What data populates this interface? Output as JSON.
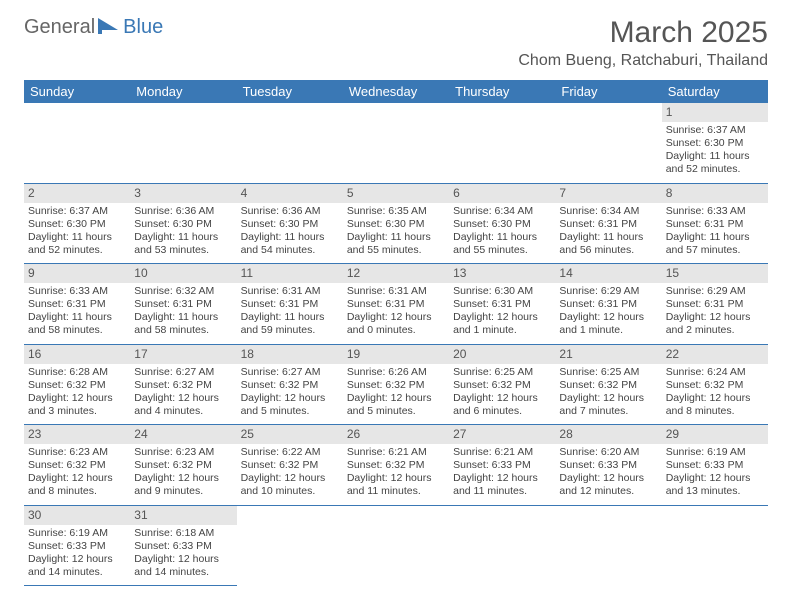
{
  "header": {
    "logo_general": "General",
    "logo_blue": "Blue",
    "month_title": "March 2025",
    "location": "Chom Bueng, Ratchaburi, Thailand"
  },
  "colors": {
    "header_bg": "#3a78b5",
    "header_text": "#ffffff",
    "daynum_bg": "#e6e6e6",
    "rule": "#3a78b5"
  },
  "weekdays": [
    "Sunday",
    "Monday",
    "Tuesday",
    "Wednesday",
    "Thursday",
    "Friday",
    "Saturday"
  ],
  "lead_blanks": 6,
  "days": [
    {
      "n": 1,
      "sunrise": "6:37 AM",
      "sunset": "6:30 PM",
      "daylight": "11 hours and 52 minutes."
    },
    {
      "n": 2,
      "sunrise": "6:37 AM",
      "sunset": "6:30 PM",
      "daylight": "11 hours and 52 minutes."
    },
    {
      "n": 3,
      "sunrise": "6:36 AM",
      "sunset": "6:30 PM",
      "daylight": "11 hours and 53 minutes."
    },
    {
      "n": 4,
      "sunrise": "6:36 AM",
      "sunset": "6:30 PM",
      "daylight": "11 hours and 54 minutes."
    },
    {
      "n": 5,
      "sunrise": "6:35 AM",
      "sunset": "6:30 PM",
      "daylight": "11 hours and 55 minutes."
    },
    {
      "n": 6,
      "sunrise": "6:34 AM",
      "sunset": "6:30 PM",
      "daylight": "11 hours and 55 minutes."
    },
    {
      "n": 7,
      "sunrise": "6:34 AM",
      "sunset": "6:31 PM",
      "daylight": "11 hours and 56 minutes."
    },
    {
      "n": 8,
      "sunrise": "6:33 AM",
      "sunset": "6:31 PM",
      "daylight": "11 hours and 57 minutes."
    },
    {
      "n": 9,
      "sunrise": "6:33 AM",
      "sunset": "6:31 PM",
      "daylight": "11 hours and 58 minutes."
    },
    {
      "n": 10,
      "sunrise": "6:32 AM",
      "sunset": "6:31 PM",
      "daylight": "11 hours and 58 minutes."
    },
    {
      "n": 11,
      "sunrise": "6:31 AM",
      "sunset": "6:31 PM",
      "daylight": "11 hours and 59 minutes."
    },
    {
      "n": 12,
      "sunrise": "6:31 AM",
      "sunset": "6:31 PM",
      "daylight": "12 hours and 0 minutes."
    },
    {
      "n": 13,
      "sunrise": "6:30 AM",
      "sunset": "6:31 PM",
      "daylight": "12 hours and 1 minute."
    },
    {
      "n": 14,
      "sunrise": "6:29 AM",
      "sunset": "6:31 PM",
      "daylight": "12 hours and 1 minute."
    },
    {
      "n": 15,
      "sunrise": "6:29 AM",
      "sunset": "6:31 PM",
      "daylight": "12 hours and 2 minutes."
    },
    {
      "n": 16,
      "sunrise": "6:28 AM",
      "sunset": "6:32 PM",
      "daylight": "12 hours and 3 minutes."
    },
    {
      "n": 17,
      "sunrise": "6:27 AM",
      "sunset": "6:32 PM",
      "daylight": "12 hours and 4 minutes."
    },
    {
      "n": 18,
      "sunrise": "6:27 AM",
      "sunset": "6:32 PM",
      "daylight": "12 hours and 5 minutes."
    },
    {
      "n": 19,
      "sunrise": "6:26 AM",
      "sunset": "6:32 PM",
      "daylight": "12 hours and 5 minutes."
    },
    {
      "n": 20,
      "sunrise": "6:25 AM",
      "sunset": "6:32 PM",
      "daylight": "12 hours and 6 minutes."
    },
    {
      "n": 21,
      "sunrise": "6:25 AM",
      "sunset": "6:32 PM",
      "daylight": "12 hours and 7 minutes."
    },
    {
      "n": 22,
      "sunrise": "6:24 AM",
      "sunset": "6:32 PM",
      "daylight": "12 hours and 8 minutes."
    },
    {
      "n": 23,
      "sunrise": "6:23 AM",
      "sunset": "6:32 PM",
      "daylight": "12 hours and 8 minutes."
    },
    {
      "n": 24,
      "sunrise": "6:23 AM",
      "sunset": "6:32 PM",
      "daylight": "12 hours and 9 minutes."
    },
    {
      "n": 25,
      "sunrise": "6:22 AM",
      "sunset": "6:32 PM",
      "daylight": "12 hours and 10 minutes."
    },
    {
      "n": 26,
      "sunrise": "6:21 AM",
      "sunset": "6:32 PM",
      "daylight": "12 hours and 11 minutes."
    },
    {
      "n": 27,
      "sunrise": "6:21 AM",
      "sunset": "6:33 PM",
      "daylight": "12 hours and 11 minutes."
    },
    {
      "n": 28,
      "sunrise": "6:20 AM",
      "sunset": "6:33 PM",
      "daylight": "12 hours and 12 minutes."
    },
    {
      "n": 29,
      "sunrise": "6:19 AM",
      "sunset": "6:33 PM",
      "daylight": "12 hours and 13 minutes."
    },
    {
      "n": 30,
      "sunrise": "6:19 AM",
      "sunset": "6:33 PM",
      "daylight": "12 hours and 14 minutes."
    },
    {
      "n": 31,
      "sunrise": "6:18 AM",
      "sunset": "6:33 PM",
      "daylight": "12 hours and 14 minutes."
    }
  ],
  "labels": {
    "sunrise": "Sunrise: ",
    "sunset": "Sunset: ",
    "daylight": "Daylight: "
  }
}
